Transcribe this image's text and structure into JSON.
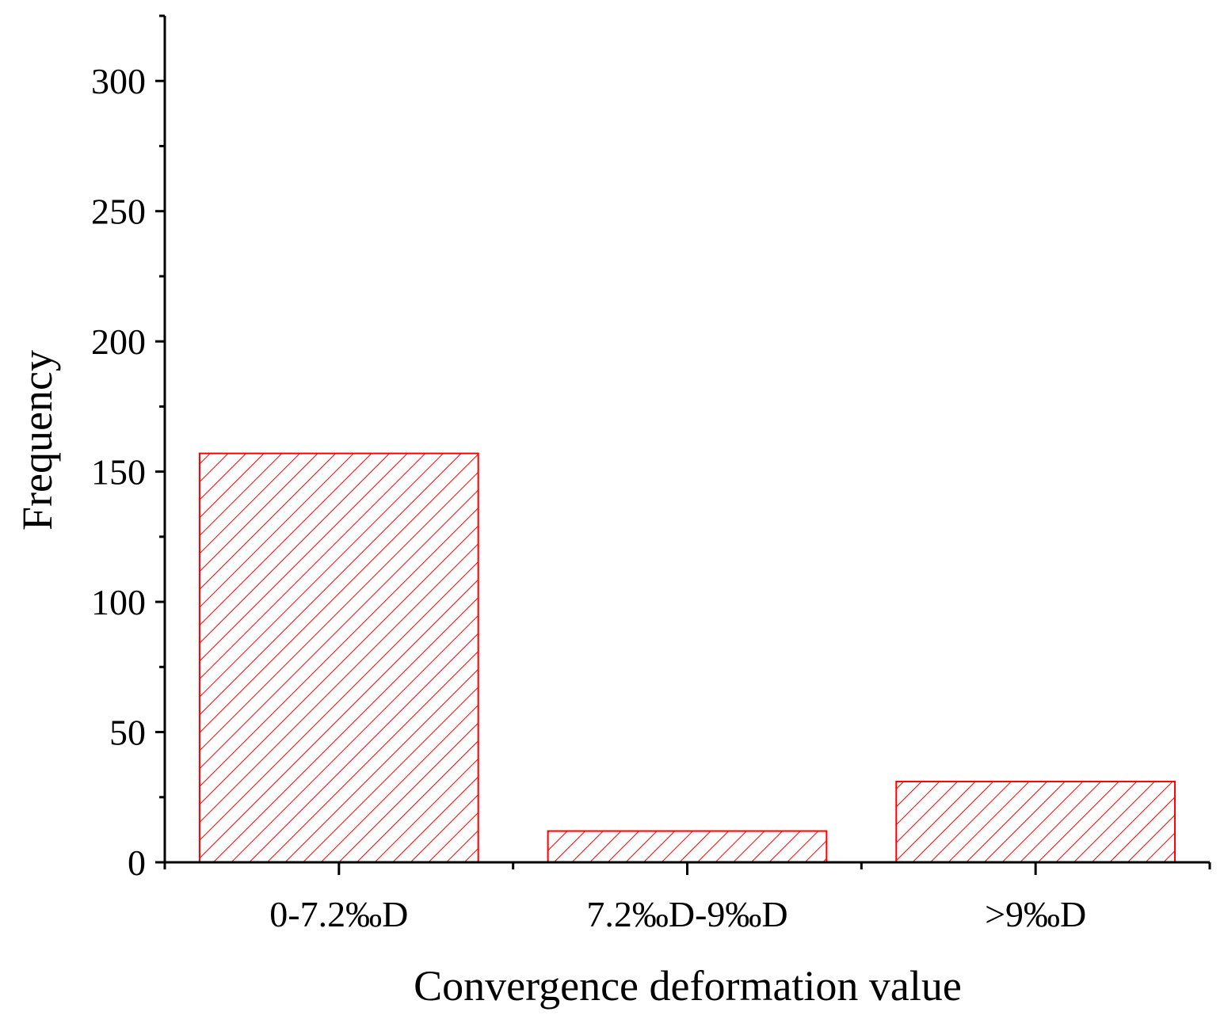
{
  "chart_data": {
    "type": "bar",
    "categories": [
      "0-7.2‰D",
      "7.2‰D-9‰D",
      ">9‰D"
    ],
    "values": [
      157,
      12,
      31
    ],
    "title": "",
    "xlabel": "Convergence deformation value",
    "ylabel": "Frequency",
    "ylim": [
      0,
      325
    ],
    "yticks": [
      0,
      50,
      100,
      150,
      200,
      250,
      300
    ],
    "yminor_step": 25,
    "grid": false,
    "legend": "none",
    "bar_style": {
      "edge_color": "#ff0000",
      "hatch_color": "#ff0000",
      "fill": "hatched-diagonal",
      "background": "#ffffff"
    }
  }
}
